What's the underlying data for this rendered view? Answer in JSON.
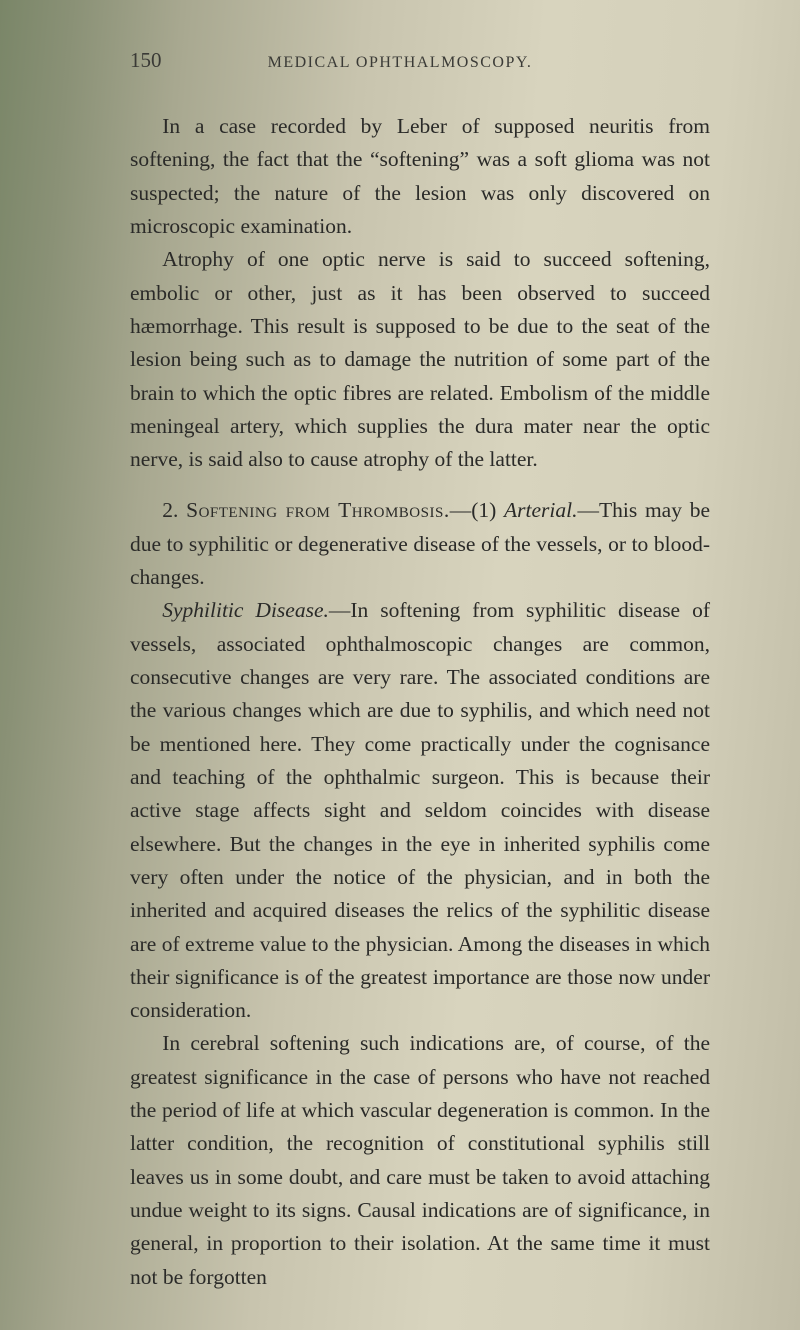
{
  "page": {
    "number": "150",
    "running_head": "MEDICAL OPHTHALMOSCOPY.",
    "background_colors": {
      "left_edge": "#7a8668",
      "mid": "#c8c4ae",
      "right": "#d4d0ba"
    },
    "text_color": "#2a2a28",
    "font_family": "Georgia serif",
    "body_fontsize": 21.5,
    "line_height": 1.55,
    "paragraphs": [
      {
        "gap_before": false,
        "runs": [
          {
            "text": "In a case recorded by Leber of supposed neuritis from softening, the fact that the “softening” was a soft glioma was not suspected; the nature of the lesion was only discovered on microscopic examination.",
            "style": "normal"
          }
        ]
      },
      {
        "gap_before": false,
        "runs": [
          {
            "text": "Atrophy of one optic nerve is said to succeed softening, embolic or other, just as it has been observed to succeed hæmorrhage. This result is supposed to be due to the seat of the lesion being such as to damage the nutrition of some part of the brain to which the optic fibres are related. Embolism of the middle meningeal artery, which supplies the dura mater near the optic nerve, is said also to cause atrophy of the latter.",
            "style": "normal"
          }
        ]
      },
      {
        "gap_before": true,
        "runs": [
          {
            "text": "2. ",
            "style": "normal"
          },
          {
            "text": "Softening from Thrombosis.",
            "style": "smallcaps"
          },
          {
            "text": "—(1) ",
            "style": "normal"
          },
          {
            "text": "Arterial.",
            "style": "italic"
          },
          {
            "text": "—This may be due to syphilitic or degenerative disease of the vessels, or to blood-changes.",
            "style": "normal"
          }
        ]
      },
      {
        "gap_before": false,
        "runs": [
          {
            "text": "Syphilitic Disease.",
            "style": "italic"
          },
          {
            "text": "—In softening from syphilitic disease of vessels, associated ophthalmoscopic changes are common, consecutive changes are very rare. The associated conditions are the various changes which are due to syphilis, and which need not be mentioned here. They come practically under the cognisance and teaching of the ophthalmic surgeon. This is because their active stage affects sight and seldom coincides with disease elsewhere. But the changes in the eye in inherited syphilis come very often under the notice of the physician, and in both the inherited and acquired diseases the relics of the syphilitic disease are of extreme value to the physician. Among the diseases in which their significance is of the greatest importance are those now under consideration.",
            "style": "normal"
          }
        ]
      },
      {
        "gap_before": false,
        "runs": [
          {
            "text": "In cerebral softening such indications are, of course, of the greatest significance in the case of persons who have not reached the period of life at which vascular degeneration is common. In the latter condition, the recognition of constitutional syphilis still leaves us in some doubt, and care must be taken to avoid attaching undue weight to its signs. Causal indications are of significance, in general, in proportion to their isolation. At the same time it must not be forgotten",
            "style": "normal"
          }
        ]
      }
    ]
  }
}
